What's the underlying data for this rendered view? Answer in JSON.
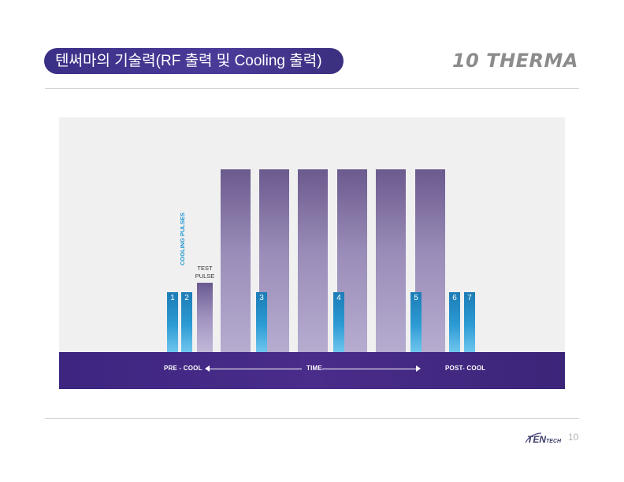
{
  "header": {
    "title": "텐써마의 기술력(RF 출력 및 Cooling 출력)",
    "brand": "10 THERMA"
  },
  "diagram": {
    "cooling_label": "COOLING PULSES",
    "test_label_line1": "TEST",
    "test_label_line2": "PULSE",
    "cooling_pulses": [
      "1",
      "2",
      "3",
      "4",
      "5",
      "6",
      "7"
    ],
    "rf_pulse_count": 6,
    "timeline": {
      "pre": "PRE - COOL",
      "time": "TIME",
      "post": "POST- COOL"
    },
    "colors": {
      "rf_pulse": "#9a8cb8",
      "cooling_pulse": "#2d9bd4",
      "timeline": "#4a2c8a",
      "background": "#f0f0f0"
    }
  },
  "footer": {
    "logo_text": "TENTECH",
    "page_number": "10"
  }
}
